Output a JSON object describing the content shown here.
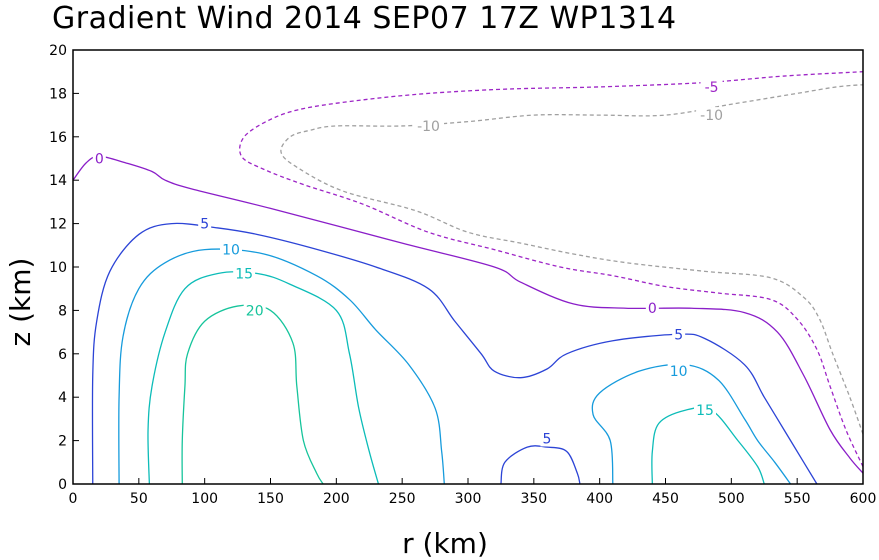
{
  "chart_data": {
    "type": "contour",
    "title": "Gradient Wind 2014 SEP07 17Z   WP1314",
    "xlabel": "r (km)",
    "ylabel": "z (km)",
    "xlim": [
      0,
      600
    ],
    "ylim": [
      0,
      20
    ],
    "xticks": [
      0,
      50,
      100,
      150,
      200,
      250,
      300,
      350,
      400,
      450,
      500,
      550,
      600
    ],
    "yticks": [
      0,
      2,
      4,
      6,
      8,
      10,
      12,
      14,
      16,
      18,
      20
    ],
    "grid": false,
    "contours": [
      {
        "level": -10,
        "label": "-10",
        "color": "#a0a0a0",
        "dashed": true,
        "points": [
          [
            600,
            2.3
          ],
          [
            590,
            4
          ],
          [
            577,
            6
          ],
          [
            567,
            7.6
          ],
          [
            555,
            8.6
          ],
          [
            530,
            9.5
          ],
          [
            480,
            9.8
          ],
          [
            420,
            10.2
          ],
          [
            380,
            10.6
          ],
          [
            340,
            11.1
          ],
          [
            300,
            11.6
          ],
          [
            260,
            12.6
          ],
          [
            205,
            13.5
          ],
          [
            170,
            14.6
          ],
          [
            158,
            15.3
          ],
          [
            165,
            16
          ],
          [
            180,
            16.3
          ],
          [
            200,
            16.5
          ],
          [
            250,
            16.5
          ],
          [
            300,
            16.7
          ],
          [
            350,
            17
          ],
          [
            400,
            17
          ],
          [
            450,
            17
          ],
          [
            500,
            17.5
          ],
          [
            550,
            18
          ],
          [
            580,
            18.3
          ],
          [
            600,
            18.4
          ]
        ],
        "label_at": [
          [
            270,
            16.5
          ],
          [
            485,
            17
          ]
        ]
      },
      {
        "level": -5,
        "label": "-5",
        "color": "#9d25c6",
        "dashed": true,
        "points": [
          [
            600,
            0.8
          ],
          [
            587,
            2.5
          ],
          [
            575,
            4.5
          ],
          [
            565,
            6.2
          ],
          [
            550,
            7.6
          ],
          [
            530,
            8.5
          ],
          [
            490,
            8.8
          ],
          [
            450,
            9.1
          ],
          [
            410,
            9.6
          ],
          [
            370,
            10
          ],
          [
            320,
            10.8
          ],
          [
            270,
            11.6
          ],
          [
            220,
            12.9
          ],
          [
            175,
            13.8
          ],
          [
            145,
            14.5
          ],
          [
            128,
            15.1
          ],
          [
            130,
            16
          ],
          [
            150,
            16.8
          ],
          [
            175,
            17.3
          ],
          [
            220,
            17.7
          ],
          [
            270,
            18
          ],
          [
            330,
            18.2
          ],
          [
            400,
            18.3
          ],
          [
            480,
            18.5
          ],
          [
            540,
            18.8
          ],
          [
            600,
            19
          ]
        ],
        "label_at": [
          [
            485,
            18.3
          ]
        ]
      },
      {
        "level": 0,
        "label": "0",
        "color": "#8a1ec8",
        "dashed": false,
        "points": [
          [
            0,
            14
          ],
          [
            10,
            14.8
          ],
          [
            20,
            15.1
          ],
          [
            40,
            14.8
          ],
          [
            60,
            14.4
          ],
          [
            70,
            14
          ],
          [
            90,
            13.6
          ],
          [
            150,
            12.7
          ],
          [
            250,
            11.1
          ],
          [
            320,
            10
          ],
          [
            340,
            9.3
          ],
          [
            380,
            8.3
          ],
          [
            420,
            8.1
          ],
          [
            470,
            8.1
          ],
          [
            510,
            7.9
          ],
          [
            535,
            7
          ],
          [
            555,
            5
          ],
          [
            575,
            2.5
          ],
          [
            590,
            1.2
          ],
          [
            600,
            0.5
          ]
        ],
        "label_at": [
          [
            20,
            15
          ],
          [
            440,
            8.1
          ]
        ]
      },
      {
        "level": 5,
        "label": "5",
        "color": "#2c44d6",
        "dashed": false,
        "points": [
          [
            15,
            0
          ],
          [
            15,
            5
          ],
          [
            18,
            7.5
          ],
          [
            28,
            9.8
          ],
          [
            50,
            11.5
          ],
          [
            75,
            12
          ],
          [
            110,
            11.8
          ],
          [
            140,
            11.5
          ],
          [
            180,
            10.9
          ],
          [
            230,
            10
          ],
          [
            270,
            9
          ],
          [
            290,
            7.5
          ],
          [
            310,
            6
          ],
          [
            320,
            5.2
          ],
          [
            340,
            4.9
          ],
          [
            360,
            5.3
          ],
          [
            375,
            6
          ],
          [
            410,
            6.6
          ],
          [
            460,
            6.9
          ],
          [
            480,
            6.7
          ],
          [
            510,
            5.5
          ],
          [
            525,
            4
          ],
          [
            540,
            2.5
          ],
          [
            555,
            1
          ],
          [
            565,
            0
          ]
        ],
        "label_at": [
          [
            100,
            12
          ],
          [
            460,
            6.9
          ]
        ]
      },
      {
        "level": 5,
        "label": "5",
        "color": "#2c44d6",
        "dashed": false,
        "points": [
          [
            325,
            0
          ],
          [
            328,
            1
          ],
          [
            345,
            1.7
          ],
          [
            360,
            1.7
          ],
          [
            375,
            1.5
          ],
          [
            383,
            0.5
          ],
          [
            385,
            0
          ]
        ],
        "label_at": [
          [
            360,
            2.1
          ]
        ]
      },
      {
        "level": 10,
        "label": "10",
        "color": "#169bdc",
        "dashed": false,
        "points": [
          [
            35,
            0
          ],
          [
            35,
            4
          ],
          [
            38,
            6.8
          ],
          [
            50,
            9
          ],
          [
            70,
            10.2
          ],
          [
            100,
            10.8
          ],
          [
            145,
            10.6
          ],
          [
            185,
            9.6
          ],
          [
            210,
            8.5
          ],
          [
            230,
            7.1
          ],
          [
            255,
            5.5
          ],
          [
            275,
            3.5
          ],
          [
            280,
            1.5
          ],
          [
            282,
            0
          ]
        ],
        "label_at": [
          [
            120,
            10.8
          ]
        ]
      },
      {
        "level": 10,
        "label": "10",
        "color": "#169bdc",
        "dashed": false,
        "points": [
          [
            410,
            0
          ],
          [
            408,
            2
          ],
          [
            395,
            3.2
          ],
          [
            400,
            4.2
          ],
          [
            430,
            5.2
          ],
          [
            465,
            5.5
          ],
          [
            490,
            4.8
          ],
          [
            510,
            3
          ],
          [
            520,
            2
          ],
          [
            533,
            1
          ],
          [
            545,
            0
          ]
        ],
        "label_at": [
          [
            460,
            5.2
          ]
        ]
      },
      {
        "level": 15,
        "label": "15",
        "color": "#0cbcb8",
        "dashed": false,
        "points": [
          [
            58,
            0
          ],
          [
            57,
            2.5
          ],
          [
            60,
            4.5
          ],
          [
            70,
            7
          ],
          [
            85,
            9
          ],
          [
            110,
            9.7
          ],
          [
            140,
            9.7
          ],
          [
            165,
            9.2
          ],
          [
            200,
            8
          ],
          [
            210,
            6
          ],
          [
            217,
            3.5
          ],
          [
            225,
            1.5
          ],
          [
            232,
            0
          ]
        ],
        "label_at": [
          [
            130,
            9.7
          ]
        ]
      },
      {
        "level": 15,
        "label": "15",
        "color": "#0cbcb8",
        "dashed": false,
        "points": [
          [
            440,
            0
          ],
          [
            440,
            1.5
          ],
          [
            445,
            2.8
          ],
          [
            465,
            3.4
          ],
          [
            485,
            3.4
          ],
          [
            505,
            2
          ],
          [
            520,
            0.8
          ],
          [
            525,
            0
          ]
        ],
        "label_at": [
          [
            480,
            3.4
          ]
        ]
      },
      {
        "level": 20,
        "label": "20",
        "color": "#16c49b",
        "dashed": false,
        "points": [
          [
            83,
            0
          ],
          [
            83,
            2
          ],
          [
            85,
            4.5
          ],
          [
            87,
            6
          ],
          [
            100,
            7.5
          ],
          [
            125,
            8.2
          ],
          [
            150,
            8
          ],
          [
            167,
            6.5
          ],
          [
            170,
            4.5
          ],
          [
            175,
            2
          ],
          [
            185,
            0.5
          ],
          [
            190,
            0
          ]
        ],
        "label_at": [
          [
            138,
            8
          ]
        ]
      }
    ]
  }
}
